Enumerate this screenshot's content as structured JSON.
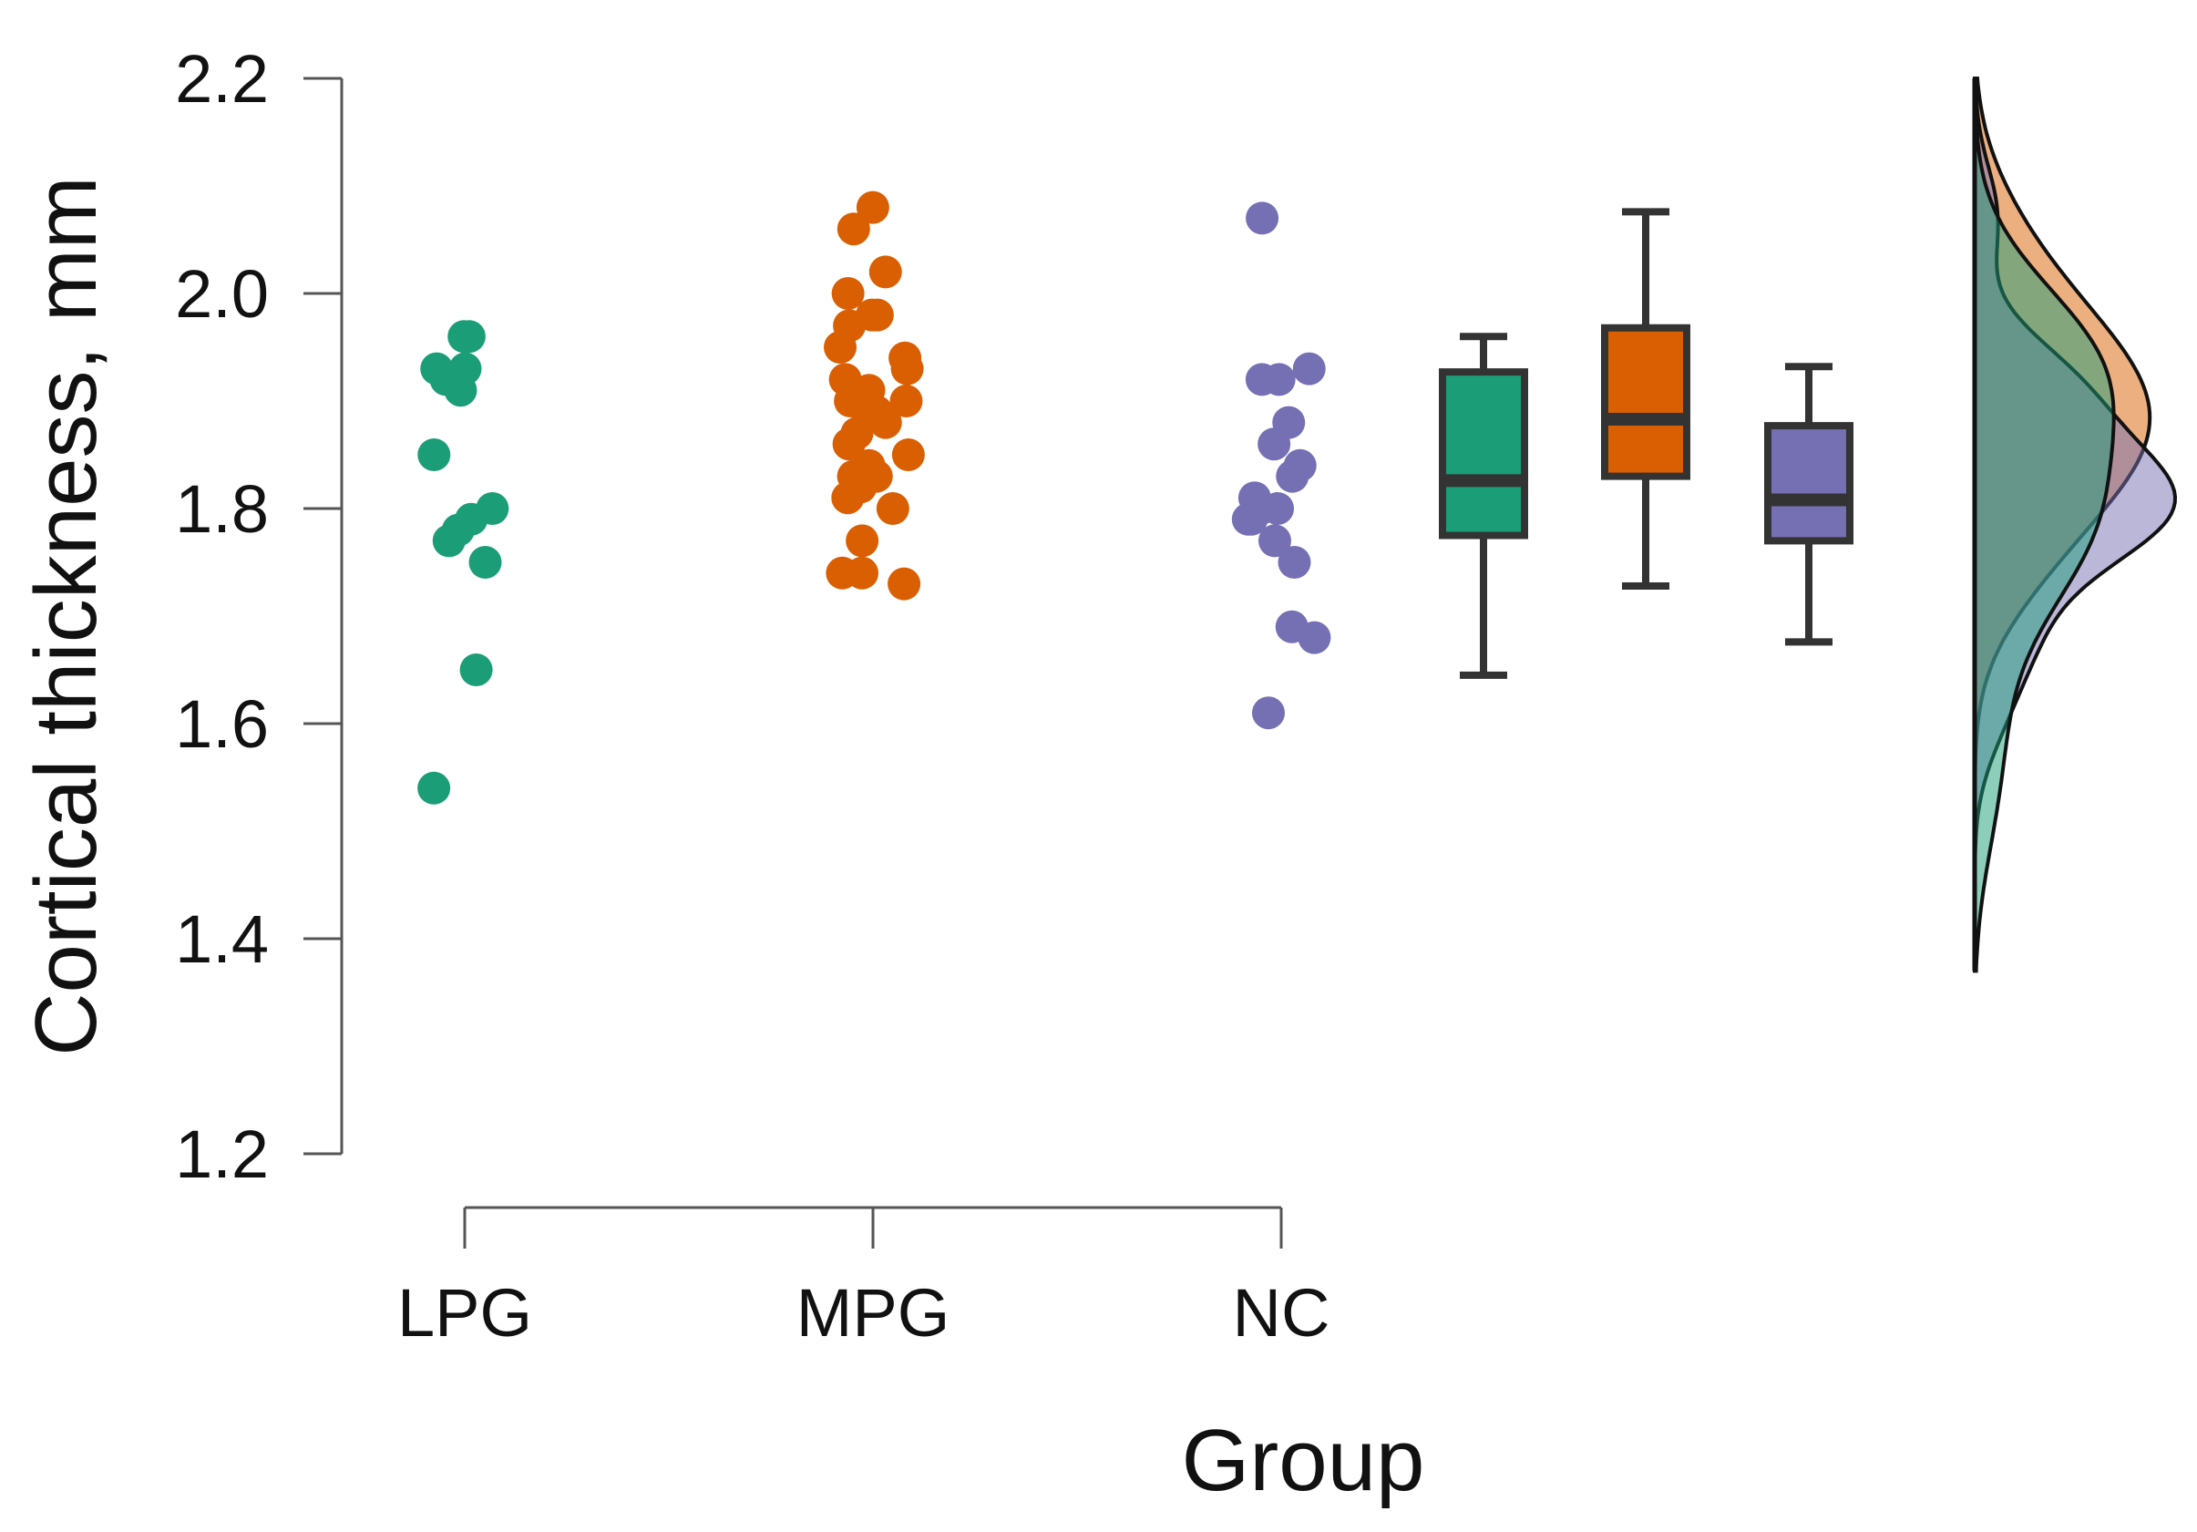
{
  "chart_data": {
    "type": "raincloud",
    "title": "",
    "xlabel": "Group",
    "ylabel": "Cortical thickness, mm",
    "ylim": [
      1.2,
      2.2
    ],
    "yticks": [
      1.2,
      1.4,
      1.6,
      1.8,
      2.0,
      2.2
    ],
    "ytick_labels": [
      "1.2",
      "1.4",
      "1.6",
      "1.8",
      "2.0",
      "2.2"
    ],
    "categories": [
      "LPG",
      "MPG",
      "NC"
    ],
    "series": [
      {
        "name": "LPG",
        "color": "#1b9e77",
        "points": [
          1.96,
          1.96,
          1.93,
          1.92,
          1.91,
          1.93,
          1.85,
          1.8,
          1.79,
          1.78,
          1.77,
          1.75,
          1.65,
          1.54
        ],
        "box": {
          "whisker_low": 1.645,
          "q1": 1.775,
          "median": 1.826,
          "q3": 1.927,
          "whisker_high": 1.96
        }
      },
      {
        "name": "MPG",
        "color": "#d95f02",
        "points": [
          2.08,
          2.06,
          2.02,
          2.0,
          1.98,
          1.98,
          1.97,
          1.95,
          1.94,
          1.93,
          1.92,
          1.91,
          1.9,
          1.9,
          1.89,
          1.89,
          1.88,
          1.87,
          1.86,
          1.85,
          1.84,
          1.83,
          1.83,
          1.82,
          1.81,
          1.8,
          1.77,
          1.74,
          1.74,
          1.73
        ],
        "box": {
          "whisker_low": 1.728,
          "q1": 1.83,
          "median": 1.883,
          "q3": 1.968,
          "whisker_high": 2.076
        }
      },
      {
        "name": "NC",
        "color": "#7570b3",
        "points": [
          2.07,
          1.93,
          1.92,
          1.92,
          1.88,
          1.86,
          1.84,
          1.83,
          1.81,
          1.8,
          1.8,
          1.79,
          1.79,
          1.77,
          1.75,
          1.69,
          1.68,
          1.61
        ],
        "box": {
          "whisker_low": 1.676,
          "q1": 1.77,
          "median": 1.808,
          "q3": 1.877,
          "whisker_high": 1.932
        }
      }
    ],
    "density_ylim": [
      1.37,
      2.2
    ]
  }
}
